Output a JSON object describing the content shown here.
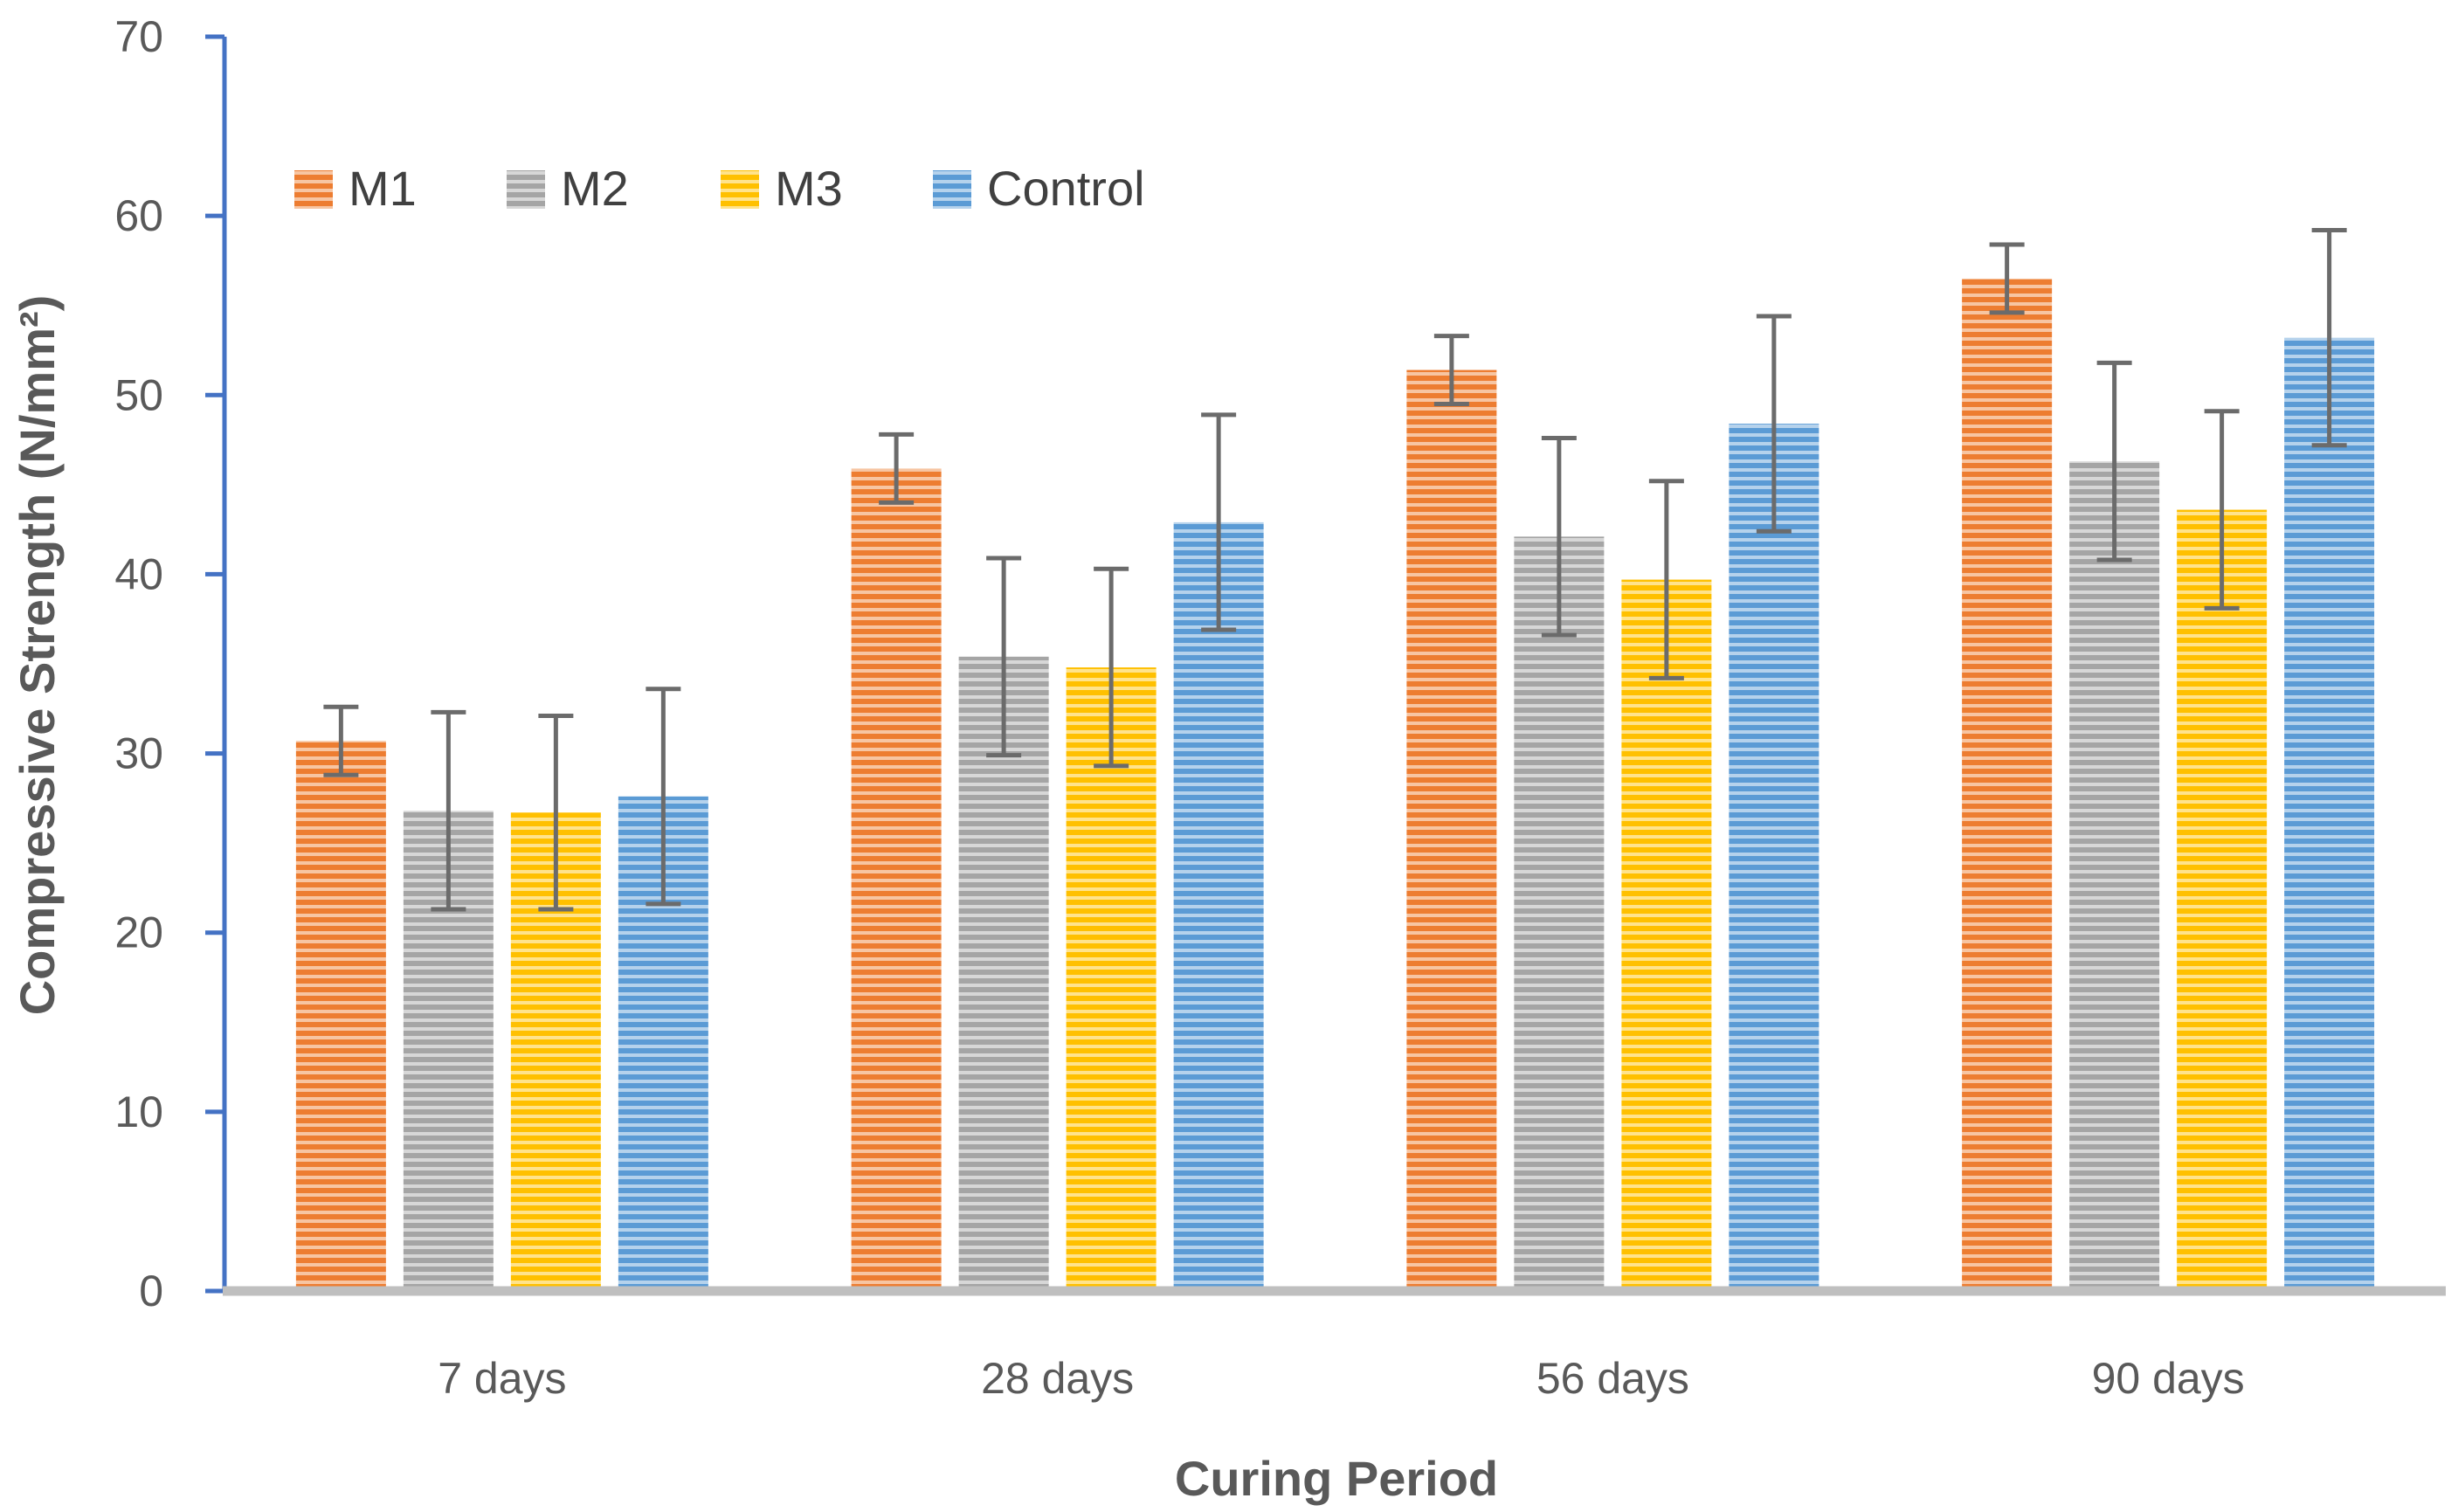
{
  "chart_data": {
    "type": "bar",
    "title": "",
    "xlabel": "Curing Period",
    "ylabel": "Compressive Strength (N/mm²)",
    "ylim": [
      0,
      70
    ],
    "yticks": [
      0,
      10,
      20,
      30,
      40,
      50,
      60,
      70
    ],
    "categories": [
      "7 days",
      "28 days",
      "56 days",
      "90 days"
    ],
    "legend_position": "top-left",
    "series": [
      {
        "name": "M1",
        "color": "#ED7D31",
        "values": [
          30.7,
          45.9,
          51.4,
          56.5
        ],
        "errors": [
          1.9,
          1.9,
          1.9,
          1.9
        ]
      },
      {
        "name": "M2",
        "color": "#A5A5A5",
        "values": [
          26.8,
          35.4,
          42.1,
          46.3
        ],
        "errors": [
          5.5,
          5.5,
          5.5,
          5.5
        ]
      },
      {
        "name": "M3",
        "color": "#FFC000",
        "values": [
          26.7,
          34.8,
          39.7,
          43.6
        ],
        "errors": [
          5.4,
          5.5,
          5.5,
          5.5
        ]
      },
      {
        "name": "Control",
        "color": "#5B9BD5",
        "values": [
          27.6,
          42.9,
          48.4,
          53.2
        ],
        "errors": [
          6.0,
          6.0,
          6.0,
          6.0
        ]
      }
    ]
  }
}
